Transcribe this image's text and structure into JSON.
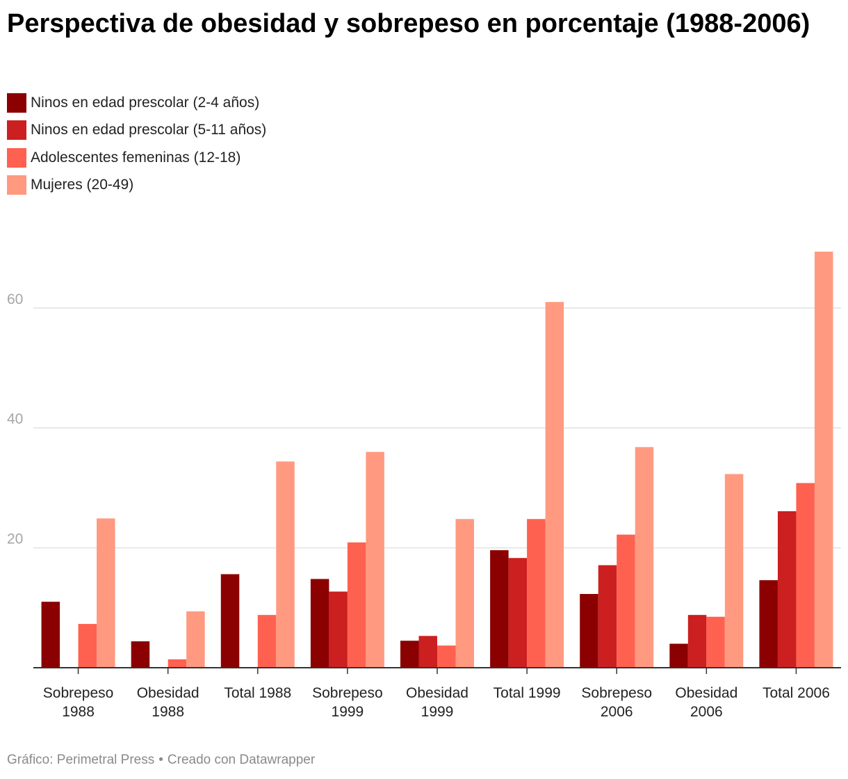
{
  "title": "Perspectiva de obesidad y sobrepeso en porcentaje (1988-2006)",
  "footer": {
    "source": "Gráfico: Perimetral Press",
    "separator": "•",
    "credit": "Creado con Datawrapper"
  },
  "chart_data": {
    "type": "bar",
    "title": "Perspectiva de obesidad y sobrepeso en porcentaje (1988-2006)",
    "xlabel": "",
    "ylabel": "",
    "ylim": [
      0,
      70
    ],
    "yticks": [
      20,
      40,
      60
    ],
    "grid": true,
    "legend_position": "top-left",
    "categories": [
      [
        "Sobrepeso",
        "1988"
      ],
      [
        "Obesidad",
        "1988"
      ],
      [
        "Total 1988"
      ],
      [
        "Sobrepeso",
        "1999"
      ],
      [
        "Obesidad",
        "1999"
      ],
      [
        "Total 1999"
      ],
      [
        "Sobrepeso",
        "2006"
      ],
      [
        "Obesidad",
        "2006"
      ],
      [
        "Total 2006"
      ]
    ],
    "series": [
      {
        "name": "Ninos en edad prescolar (2-4 años)",
        "color": "#8b0000",
        "values": [
          11.0,
          4.4,
          15.6,
          14.8,
          4.5,
          19.6,
          12.3,
          4.0,
          14.6
        ]
      },
      {
        "name": "Ninos en edad prescolar (5-11 años)",
        "color": "#cc1f1f",
        "values": [
          null,
          null,
          null,
          12.7,
          5.3,
          18.3,
          17.1,
          8.8,
          26.1
        ]
      },
      {
        "name": "Adolescentes femeninas (12-18)",
        "color": "#ff6150",
        "values": [
          7.3,
          1.4,
          8.8,
          20.9,
          3.7,
          24.8,
          22.2,
          8.5,
          30.8
        ]
      },
      {
        "name": "Mujeres (20-49)",
        "color": "#ff9a80",
        "values": [
          24.9,
          9.4,
          34.4,
          36.0,
          24.8,
          61.0,
          36.8,
          32.3,
          69.4
        ]
      }
    ]
  }
}
